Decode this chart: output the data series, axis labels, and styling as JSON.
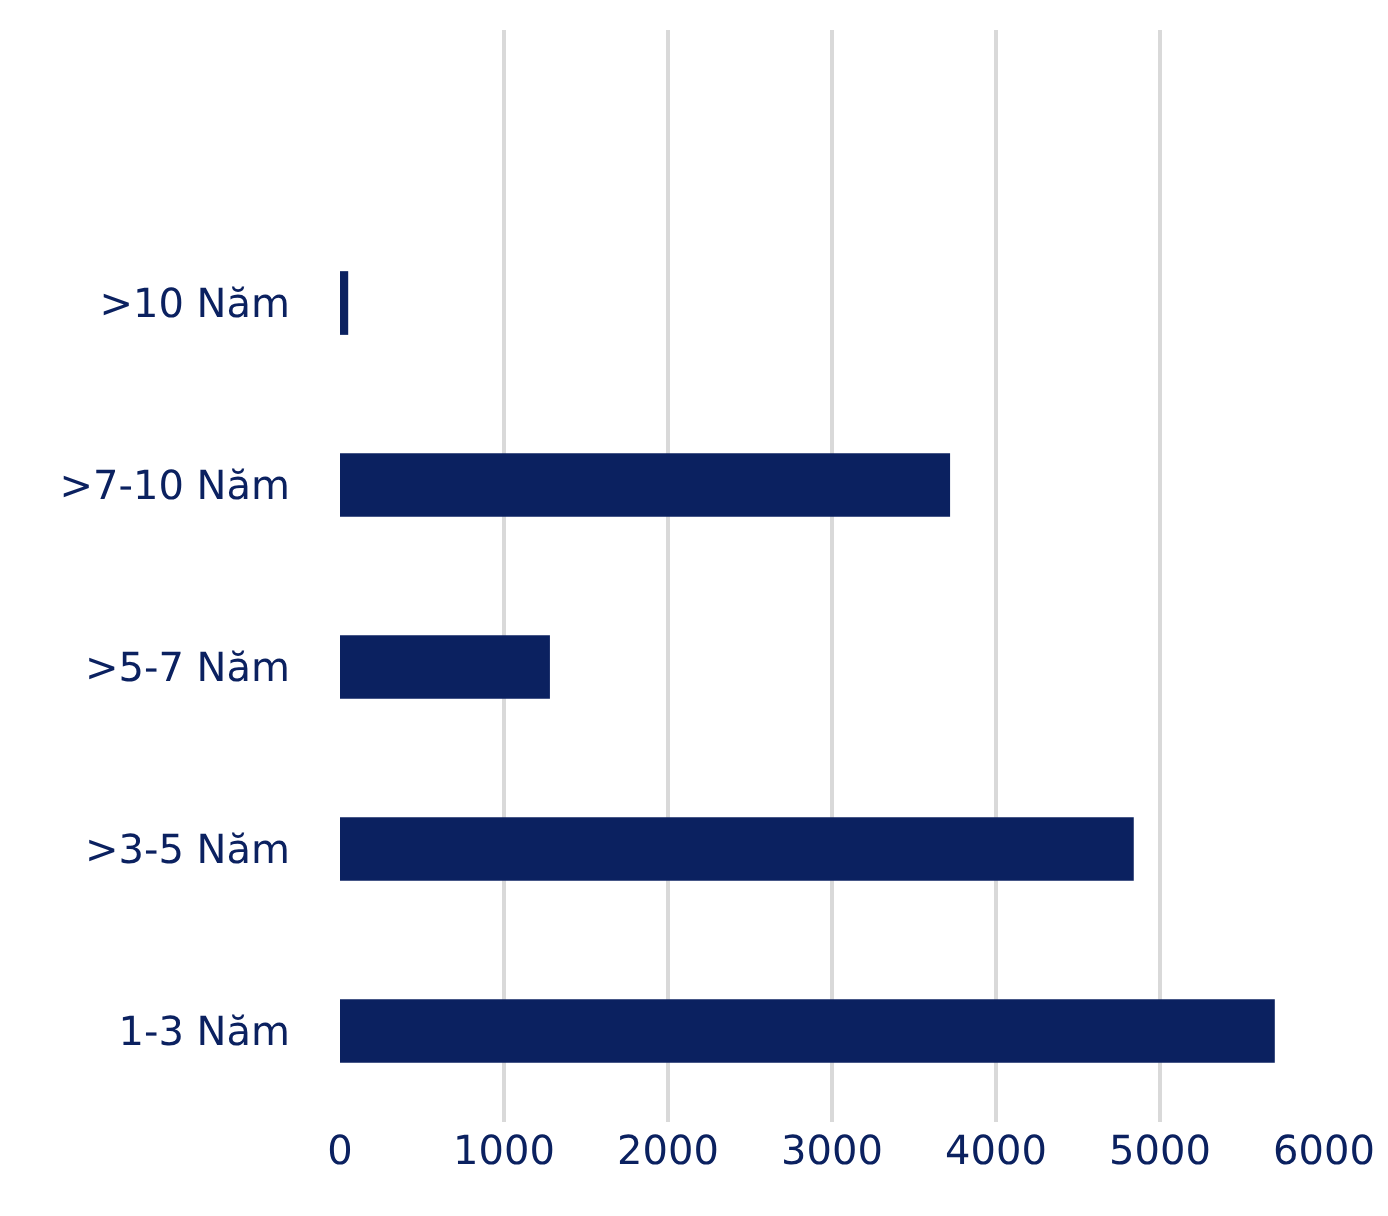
{
  "chart_data": {
    "type": "bar",
    "orientation": "horizontal",
    "categories": [
      ">10 Năm",
      ">7-10 Năm",
      ">5-7 Năm",
      ">3-5 Năm",
      "1-3 Năm"
    ],
    "values": [
      50,
      3720,
      1280,
      4840,
      5700
    ],
    "color": "#0b2160",
    "xlim": [
      0,
      6000
    ],
    "xticks": [
      0,
      1000,
      2000,
      3000,
      4000,
      5000,
      6000
    ],
    "grid": "x"
  }
}
